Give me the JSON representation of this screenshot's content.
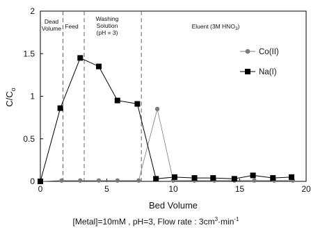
{
  "chart_data": {
    "type": "line",
    "xlabel": "Bed Volume",
    "ylabel": "C/C",
    "ylabel_subscript": "o",
    "xlim": [
      0,
      20
    ],
    "ylim": [
      0,
      2
    ],
    "x_ticks": [
      "0",
      "5",
      "10",
      "15",
      "20"
    ],
    "y_ticks": [
      "0",
      "0.5",
      "1",
      "1.5",
      "2"
    ],
    "grid": false,
    "legend_position": "top-right",
    "regions": [
      {
        "lines": [
          "Dead",
          "Volume"
        ]
      },
      {
        "lines": [
          "Feed"
        ]
      },
      {
        "lines": [
          "Washing",
          "Solution",
          "(pH = 3)"
        ]
      },
      {
        "lines": [
          "Eluent (3M HNO",
          "3",
          ")"
        ]
      }
    ],
    "region_boundaries": [
      1.7,
      3.3,
      7.6
    ],
    "series": [
      {
        "name": "Co(II)",
        "marker": "circle",
        "color": "#7a7a7a",
        "x": [
          0,
          1.6,
          3.0,
          4.4,
          5.8,
          7.4,
          8.8,
          10.0,
          11.6,
          13.1,
          14.6,
          16.1,
          17.6,
          19.0
        ],
        "y": [
          0,
          0.01,
          0.01,
          0.01,
          0.01,
          0.01,
          0.85,
          0.01,
          0.01,
          0.01,
          0.01,
          0.01,
          0.01,
          0.01
        ]
      },
      {
        "name": "Na(I)",
        "marker": "square",
        "color": "#000000",
        "x": [
          0,
          1.5,
          3.0,
          4.4,
          5.8,
          7.3,
          8.7,
          10.1,
          11.6,
          13.0,
          14.6,
          16.0,
          17.5,
          18.9
        ],
        "y": [
          0,
          0.86,
          1.45,
          1.35,
          0.95,
          0.91,
          0.03,
          0.05,
          0.04,
          0.04,
          0.03,
          0.07,
          0.04,
          0.05
        ]
      }
    ],
    "caption": {
      "prefix": "[Metal]=10mM , pH=3, Flow rate : 3cm",
      "sup1": "3",
      "mid": "·min",
      "sup2": "-1"
    }
  }
}
